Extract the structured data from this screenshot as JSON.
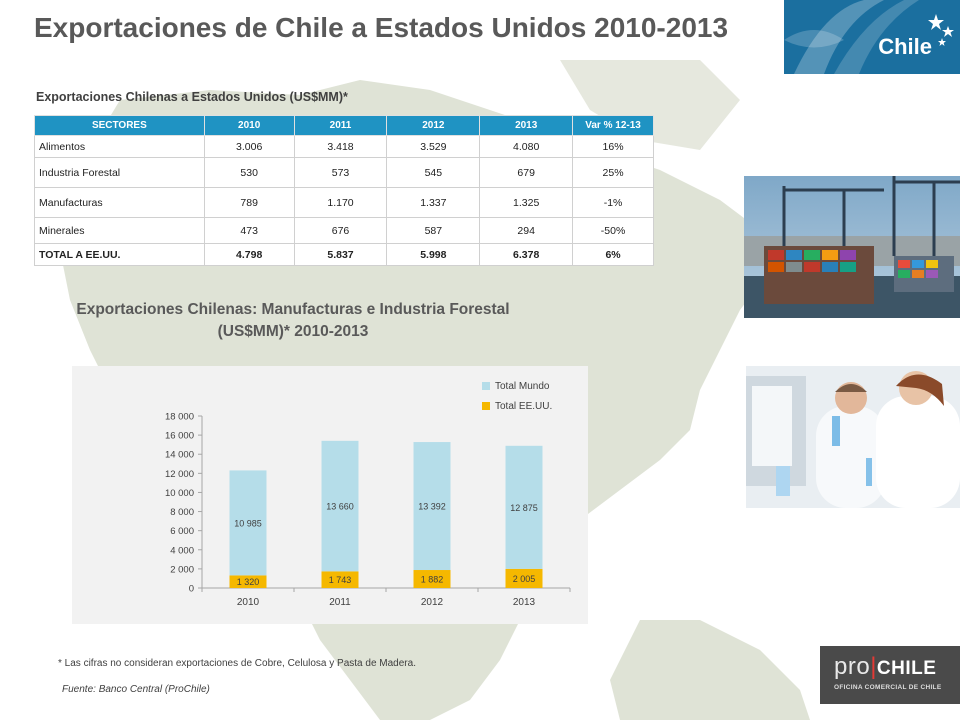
{
  "header": {
    "title": "Exportaciones de Chile a Estados Unidos 2010-2013",
    "logo_text": "Chile"
  },
  "table": {
    "title": "Exportaciones Chilenas a Estados Unidos (US$MM)*",
    "headers": [
      "SECTORES",
      "2010",
      "2011",
      "2012",
      "2013",
      "Var % 12-13"
    ],
    "rows": [
      [
        "Alimentos",
        "3.006",
        "3.418",
        "3.529",
        "4.080",
        "16%"
      ],
      [
        "Industria Forestal",
        "530",
        "573",
        "545",
        "679",
        "25%"
      ],
      [
        "Manufacturas",
        "789",
        "1.170",
        "1.337",
        "1.325",
        "-1%"
      ],
      [
        "Minerales",
        "473",
        "676",
        "587",
        "294",
        "-50%"
      ],
      [
        "TOTAL A EE.UU.",
        "4.798",
        "5.837",
        "5.998",
        "6.378",
        "6%"
      ]
    ]
  },
  "chart_title": {
    "line1": "Exportaciones Chilenas: Manufacturas e Industria Forestal",
    "line2": "(US$MM)* 2010-2013"
  },
  "chart_data": {
    "type": "bar",
    "stacked": true,
    "categories": [
      "2010",
      "2011",
      "2012",
      "2013"
    ],
    "series": [
      {
        "name": "Total EE.UU.",
        "values": [
          1320,
          1743,
          1882,
          2005
        ],
        "labels": [
          "1 320",
          "1 743",
          "1 882",
          "2 005"
        ],
        "color": "#f5b800"
      },
      {
        "name": "Total Mundo",
        "values": [
          10985,
          13660,
          13392,
          12875
        ],
        "labels": [
          "10 985",
          "13 660",
          "13 392",
          "12 875"
        ],
        "color": "#b5dde9"
      }
    ],
    "ylim": [
      0,
      18000
    ],
    "yticks": [
      0,
      2000,
      4000,
      6000,
      8000,
      10000,
      12000,
      14000,
      16000,
      18000
    ],
    "ytick_labels": [
      "0",
      "2 000",
      "4 000",
      "6 000",
      "8 000",
      "10 000",
      "12 000",
      "14 000",
      "16 000",
      "18 000"
    ],
    "legend": [
      "Total Mundo",
      "Total EE.UU."
    ],
    "legend_position": "top-right",
    "grid": false
  },
  "footnote": "* Las cifras no consideran exportaciones de Cobre, Celulosa y Pasta de Madera.",
  "source": "Fuente: Banco Central (ProChile)",
  "prochile_logo": {
    "pro": "pro",
    "separator": "|",
    "chile": "CHILE",
    "subtitle": "OFICINA COMERCIAL DE CHILE"
  },
  "colors": {
    "title": "#595959",
    "table_header": "#1f93c3",
    "logo_blue": "#1b6f9f",
    "mundo": "#b5dde9",
    "eeuu": "#f5b800"
  }
}
